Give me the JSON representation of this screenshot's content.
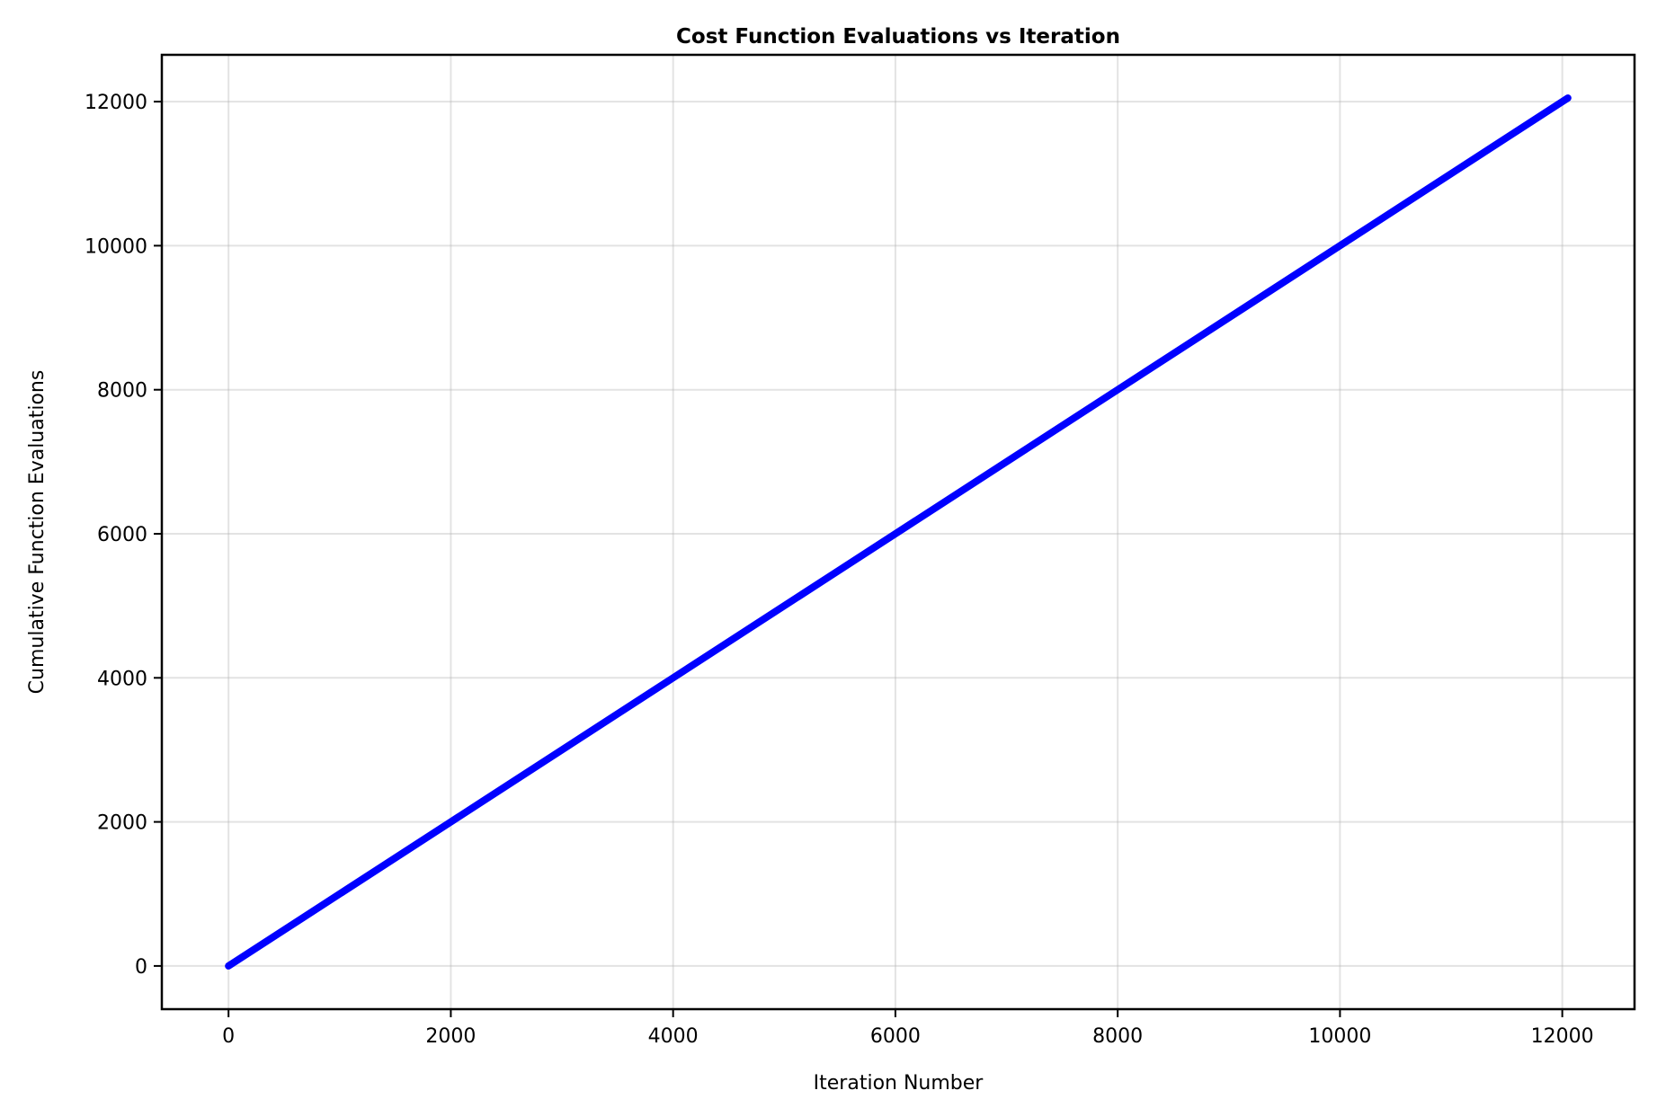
{
  "chart_data": {
    "type": "line",
    "title": "Cost Function Evaluations vs Iteration",
    "xlabel": "Iteration Number",
    "ylabel": "Cumulative Function Evaluations",
    "xlim": [
      -600,
      12650
    ],
    "ylim": [
      -600,
      12650
    ],
    "x_ticks": [
      0,
      2000,
      4000,
      6000,
      8000,
      10000,
      12000
    ],
    "y_ticks": [
      0,
      2000,
      4000,
      6000,
      8000,
      10000,
      12000
    ],
    "x_tick_labels": [
      "0",
      "2000",
      "4000",
      "6000",
      "8000",
      "10000",
      "12000"
    ],
    "y_tick_labels": [
      "0",
      "2000",
      "4000",
      "6000",
      "8000",
      "10000",
      "12000"
    ],
    "grid": true,
    "legend": "none",
    "series": [
      {
        "color": "#0000ff",
        "x": [
          0,
          2000,
          4000,
          6000,
          8000,
          10000,
          12050
        ],
        "y": [
          0,
          2000,
          4000,
          6000,
          8000,
          10000,
          12050
        ]
      }
    ]
  }
}
